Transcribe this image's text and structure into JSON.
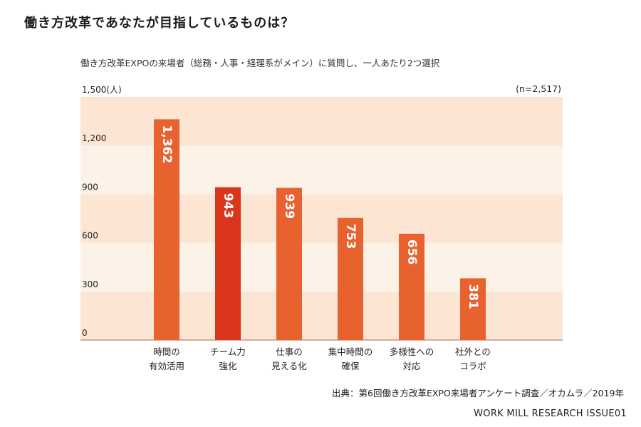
{
  "header": {
    "title": "働き方改革であなたが目指しているものは？",
    "subtitle": "働き方改革EXPOの来場者（総務・人事・経理系がメイン）に質問し、一人あたり2つ選択"
  },
  "chart_data": {
    "type": "bar",
    "categories": [
      [
        "時間の",
        "有効活用"
      ],
      [
        "チーム力",
        "強化"
      ],
      [
        "仕事の",
        "見える化"
      ],
      [
        "集中時間の",
        "確保"
      ],
      [
        "多様性への",
        "対応"
      ],
      [
        "社外との",
        "コラボ"
      ]
    ],
    "values": [
      1362,
      943,
      939,
      753,
      656,
      381
    ],
    "data_labels": [
      "1,362",
      "943",
      "939",
      "753",
      "656",
      "381"
    ],
    "y_ticks": [
      0,
      300,
      600,
      900,
      1200,
      1500
    ],
    "y_tick_labels": [
      "0",
      "300",
      "600",
      "900",
      "1,200",
      "1,500(人)"
    ],
    "ylim": [
      0,
      1500
    ],
    "sample_size": "(n=2,517)",
    "bar_color": "#e8622f",
    "highlight_color": "#d9361b",
    "highlight_index": 1,
    "band_colors": [
      "#fce5d3",
      "#fdf2e8"
    ]
  },
  "footer": {
    "source": "出典：第6回働き方改革EXPO来場者アンケート調査／オカムラ／2019年",
    "brand": "WORK MILL RESEARCH ISSUE01"
  }
}
